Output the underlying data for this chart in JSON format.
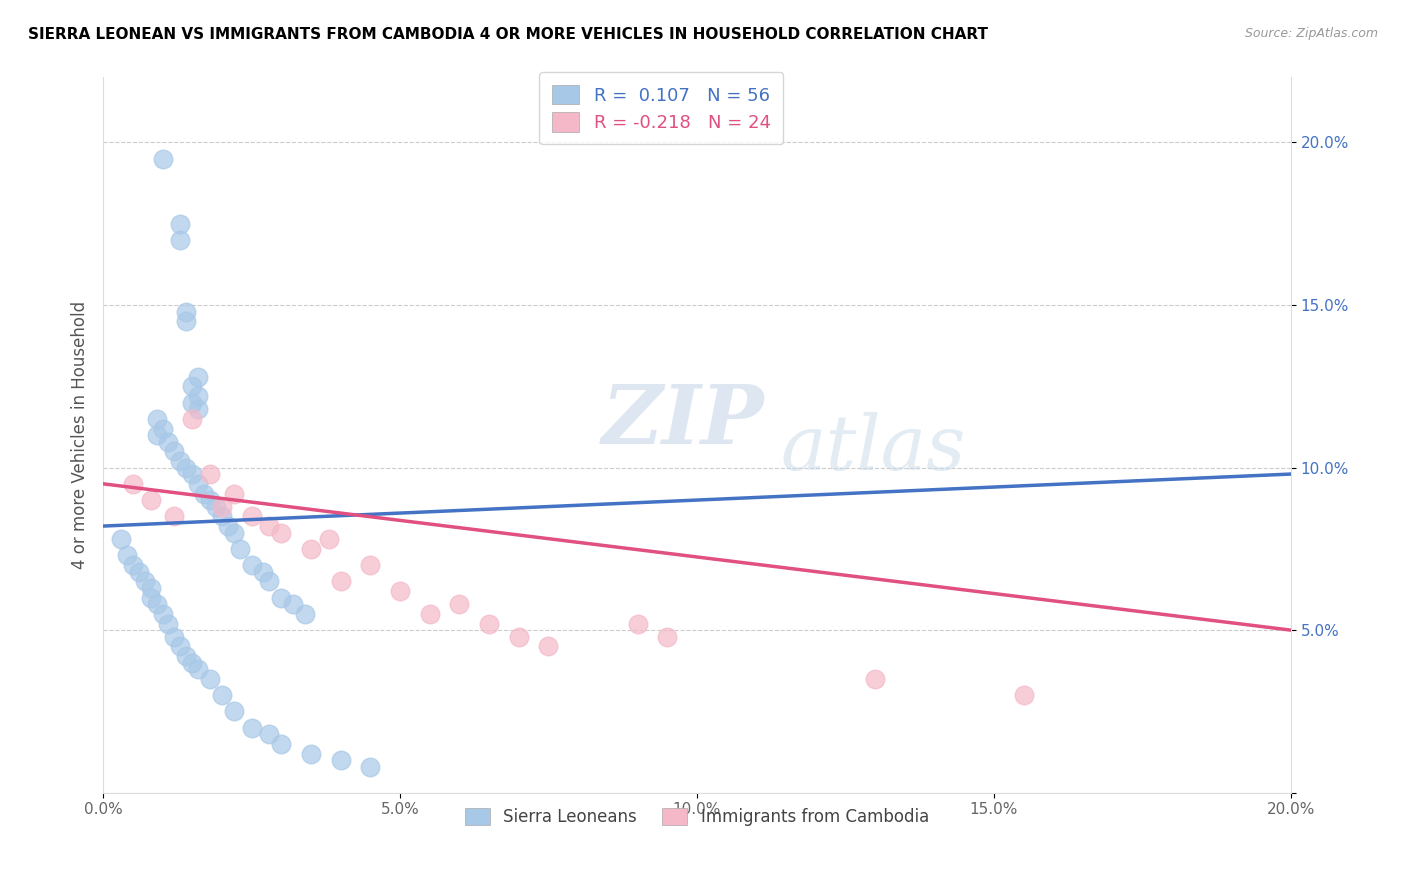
{
  "title": "SIERRA LEONEAN VS IMMIGRANTS FROM CAMBODIA 4 OR MORE VEHICLES IN HOUSEHOLD CORRELATION CHART",
  "source": "Source: ZipAtlas.com",
  "ylabel": "4 or more Vehicles in Household",
  "xmin": 0.0,
  "xmax": 0.2,
  "ymin": 0.0,
  "ymax": 0.22,
  "color_sierra": "#a8c8e8",
  "color_cambodia": "#f4b8c8",
  "trendline_sierra_color": "#4472c4",
  "trendline_cambodia_color": "#e05080",
  "watermark_line1": "ZIP",
  "watermark_line2": "atlas",
  "sierra_x": [
    0.01,
    0.013,
    0.013,
    0.014,
    0.014,
    0.015,
    0.015,
    0.016,
    0.016,
    0.016,
    0.009,
    0.009,
    0.01,
    0.011,
    0.012,
    0.013,
    0.014,
    0.015,
    0.016,
    0.017,
    0.018,
    0.019,
    0.02,
    0.021,
    0.022,
    0.023,
    0.025,
    0.027,
    0.028,
    0.03,
    0.032,
    0.034,
    0.003,
    0.004,
    0.005,
    0.006,
    0.007,
    0.008,
    0.008,
    0.009,
    0.01,
    0.011,
    0.012,
    0.013,
    0.014,
    0.015,
    0.016,
    0.018,
    0.02,
    0.022,
    0.025,
    0.028,
    0.03,
    0.035,
    0.04,
    0.045
  ],
  "sierra_y": [
    0.195,
    0.175,
    0.17,
    0.148,
    0.145,
    0.125,
    0.12,
    0.118,
    0.128,
    0.122,
    0.115,
    0.11,
    0.112,
    0.108,
    0.105,
    0.102,
    0.1,
    0.098,
    0.095,
    0.092,
    0.09,
    0.088,
    0.085,
    0.082,
    0.08,
    0.075,
    0.07,
    0.068,
    0.065,
    0.06,
    0.058,
    0.055,
    0.078,
    0.073,
    0.07,
    0.068,
    0.065,
    0.063,
    0.06,
    0.058,
    0.055,
    0.052,
    0.048,
    0.045,
    0.042,
    0.04,
    0.038,
    0.035,
    0.03,
    0.025,
    0.02,
    0.018,
    0.015,
    0.012,
    0.01,
    0.008
  ],
  "cambodia_x": [
    0.005,
    0.008,
    0.012,
    0.015,
    0.018,
    0.02,
    0.022,
    0.025,
    0.028,
    0.03,
    0.035,
    0.038,
    0.04,
    0.045,
    0.05,
    0.055,
    0.06,
    0.065,
    0.07,
    0.075,
    0.09,
    0.095,
    0.13,
    0.155
  ],
  "cambodia_y": [
    0.095,
    0.09,
    0.085,
    0.115,
    0.098,
    0.088,
    0.092,
    0.085,
    0.082,
    0.08,
    0.075,
    0.078,
    0.065,
    0.07,
    0.062,
    0.055,
    0.058,
    0.052,
    0.048,
    0.045,
    0.052,
    0.048,
    0.035,
    0.03
  ],
  "sl_trend_x0": 0.0,
  "sl_trend_y0": 0.082,
  "sl_trend_x1": 0.2,
  "sl_trend_y1": 0.098,
  "cb_trend_x0": 0.0,
  "cb_trend_y0": 0.095,
  "cb_trend_x1": 0.2,
  "cb_trend_y1": 0.05
}
